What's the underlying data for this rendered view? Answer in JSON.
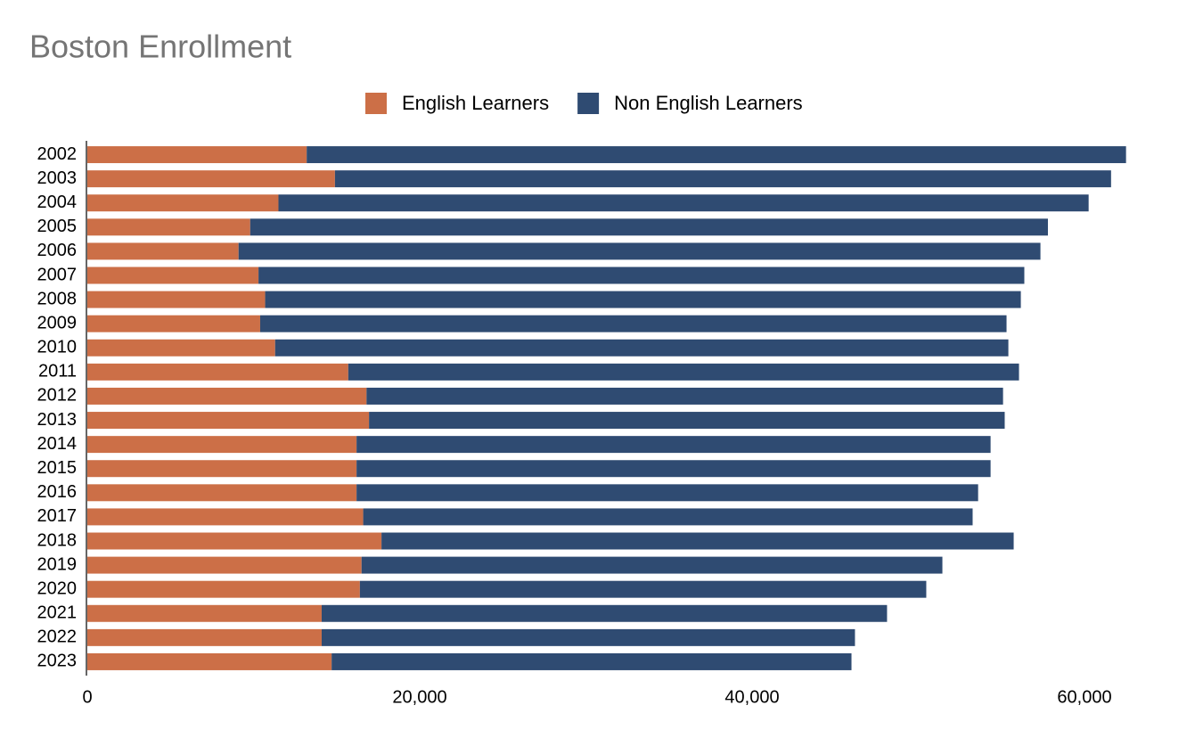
{
  "chart_data": {
    "type": "stacked-bar-horizontal",
    "title": "Boston Enrollment",
    "categories": [
      "2002",
      "2003",
      "2004",
      "2005",
      "2006",
      "2007",
      "2008",
      "2009",
      "2010",
      "2011",
      "2012",
      "2013",
      "2014",
      "2015",
      "2016",
      "2017",
      "2018",
      "2019",
      "2020",
      "2021",
      "2022",
      "2023"
    ],
    "series": [
      {
        "name": "English Learners",
        "color": "#cc6f47",
        "values": [
          13200,
          14900,
          11500,
          9800,
          9100,
          10300,
          10700,
          10400,
          11300,
          15700,
          16800,
          16950,
          16200,
          16200,
          16200,
          16600,
          17700,
          16500,
          16400,
          14100,
          14100,
          14700
        ]
      },
      {
        "name": "Non English Learners",
        "color": "#2f4b72",
        "values": [
          49300,
          46700,
          48750,
          48000,
          48250,
          46080,
          45470,
          44910,
          44120,
          40360,
          38300,
          38250,
          38150,
          38150,
          37400,
          36670,
          38040,
          34950,
          34080,
          34020,
          32090,
          31280
        ]
      }
    ],
    "xlim": [
      0,
      65000
    ],
    "xticks": [
      0,
      {
        "value": 20000,
        "label": "20,000"
      },
      {
        "value": 40000,
        "label": "40,000"
      },
      {
        "value": 60000,
        "label": "60,000"
      }
    ],
    "grid": false,
    "legend": "top"
  }
}
